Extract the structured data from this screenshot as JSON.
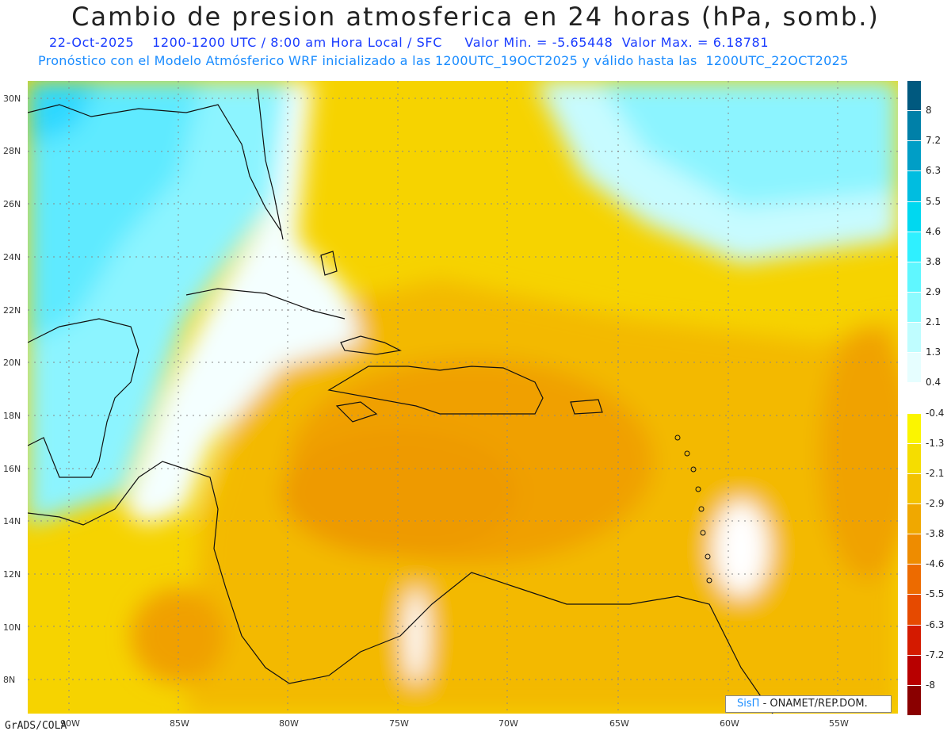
{
  "title": "Cambio de presion atmosferica en 24 horas (hPa, somb.)",
  "subtitle_line1": "22-Oct-2025    1200-1200 UTC / 8:00 am Hora Local / SFC     Valor Min. = -5.65448  Valor Max. = 6.18781",
  "subtitle_line2": "Pronóstico con el Modelo Atmósferico WRF inicializado a las 1200UTC_19OCT2025 y válido hasta las  1200UTC_22OCT2025",
  "lat_labels": [
    "30N",
    "28N",
    "26N",
    "24N",
    "22N",
    "20N",
    "18N",
    "16N",
    "14N",
    "12N",
    "10N",
    "8N"
  ],
  "lon_labels": [
    "90W",
    "85W",
    "80W",
    "75W",
    "70W",
    "65W",
    "60W",
    "55W"
  ],
  "colorbar": {
    "labels": [
      "8",
      "7.2",
      "6.3",
      "5.5",
      "4.6",
      "3.8",
      "2.9",
      "2.1",
      "1.3",
      "0.4",
      "-0.4",
      "-1.3",
      "-2.1",
      "-2.9",
      "-3.8",
      "-4.6",
      "-5.5",
      "-6.3",
      "-7.2",
      "-8"
    ],
    "colors": [
      "#00597f",
      "#0080a8",
      "#009ec6",
      "#00bde0",
      "#00d8f0",
      "#2ff0ff",
      "#5ff7ff",
      "#8cfbff",
      "#bffdff",
      "#e6feff",
      "#ffffff",
      "#fbf500",
      "#f5dd00",
      "#f3c200",
      "#f0a800",
      "#ee8c00",
      "#ed6b00",
      "#e64a00",
      "#d41a00",
      "#b80000",
      "#8a0000"
    ]
  },
  "footer_left": "GrADS/COLA",
  "credit": {
    "logo": "SisΠ",
    "text": "- ONAMET/REP.DOM."
  }
}
